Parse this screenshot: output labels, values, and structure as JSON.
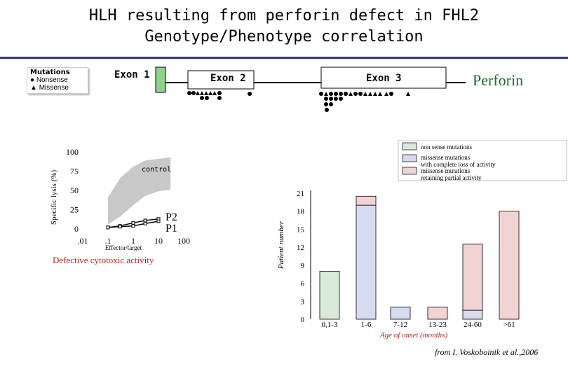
{
  "title": {
    "line1": "HLH resulting from perforin defect in FHL2",
    "line2": "Genotype/Phenotype correlation"
  },
  "gene_diagram": {
    "mutation_legend": {
      "header": "Mutations",
      "nonsense": "Nonsense",
      "missense": "Missense"
    },
    "exons": [
      "Exon 1",
      "Exon 2",
      "Exon 3"
    ],
    "protein_label": "Perforin",
    "colors": {
      "exon1": "#8fd18f",
      "exon_bar": "#ffffff",
      "protein": "#1b6a2c"
    }
  },
  "lysis_panel": {
    "caption": "Defective cytotoxic activity",
    "control_label": "control",
    "p2_label": "P2",
    "p1_label": "P1"
  },
  "chart_data": [
    {
      "type": "line",
      "title": "",
      "xlabel": "Effector/target",
      "ylabel": "Specific lysis (%)",
      "x_ticks": [
        ".01",
        ".1",
        "1",
        "10",
        "100"
      ],
      "y_ticks": [
        "0",
        "25",
        "50",
        "75",
        "100"
      ],
      "x_scale": "log",
      "xlim": [
        0.01,
        100
      ],
      "ylim": [
        0,
        100
      ],
      "control_band": {
        "name": "control",
        "x": [
          0.1,
          0.3,
          1,
          3,
          10,
          30
        ],
        "low": [
          5,
          15,
          30,
          42,
          48,
          50
        ],
        "high": [
          40,
          65,
          80,
          88,
          90,
          92
        ]
      },
      "series": [
        {
          "name": "P2",
          "x": [
            0.1,
            0.3,
            1,
            3,
            10
          ],
          "values": [
            1,
            3,
            7,
            10,
            12
          ]
        },
        {
          "name": "P1",
          "x": [
            0.1,
            0.3,
            1,
            3,
            10
          ],
          "values": [
            1,
            2,
            3,
            6,
            9
          ]
        }
      ]
    },
    {
      "type": "bar",
      "title": "",
      "xlabel": "Age of onset (months)",
      "ylabel": "Patient number",
      "categories": [
        "0,1-3",
        "1-6",
        "7-12",
        "13-23",
        "24-60",
        ">61"
      ],
      "y_ticks": [
        "0",
        "3",
        "6",
        "9",
        "12",
        "15",
        "18",
        "21"
      ],
      "ylim": [
        0,
        21
      ],
      "series": [
        {
          "name": "non sense mutations",
          "color": "#d9ead9",
          "values": [
            8,
            0,
            0,
            0,
            0,
            0
          ]
        },
        {
          "name": "missense mutations with complete loss of activity",
          "color": "#d8dbf0",
          "values": [
            0,
            19,
            2,
            0,
            1.5,
            0
          ]
        },
        {
          "name": "missense mutations retaining partial activity",
          "color": "#f2d3d3",
          "values": [
            0,
            1.5,
            0,
            2,
            11,
            18
          ]
        }
      ],
      "legend": [
        "non sense mutations",
        "missense mutations with complete loss of activity",
        "missense mutations retaining partial activity"
      ],
      "legend_position": "top-right"
    }
  ],
  "attribution": "from I. Voskoboinik et al.,2006"
}
